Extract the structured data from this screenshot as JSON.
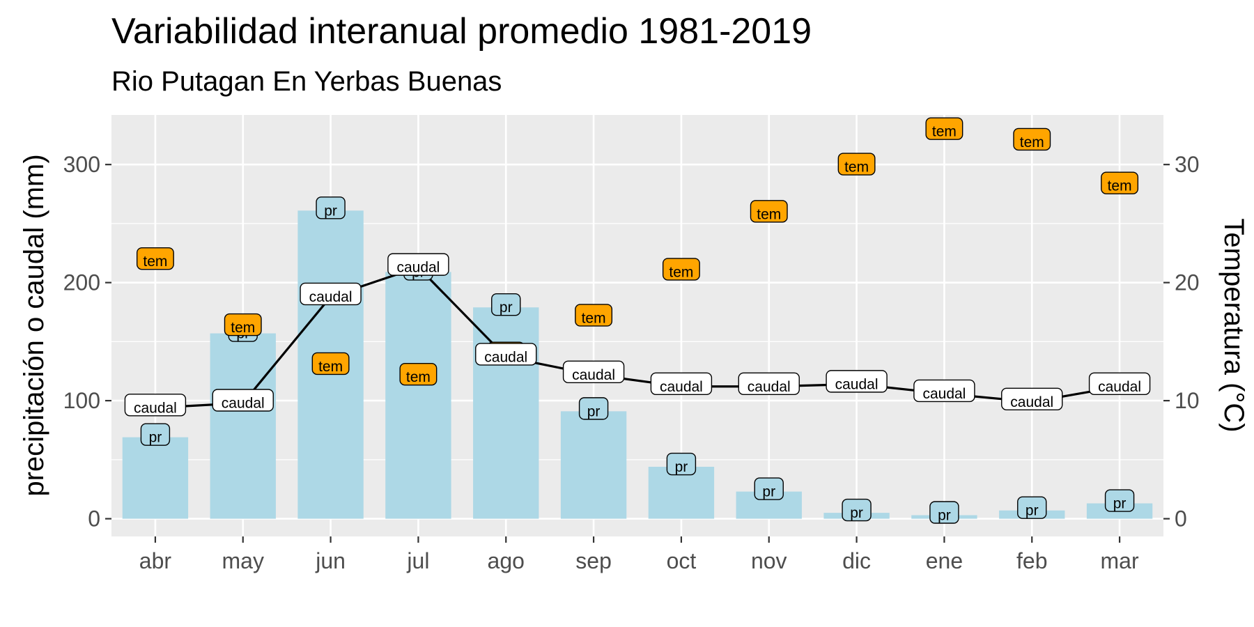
{
  "chart_data": {
    "type": "bar",
    "title": "Variabilidad interanual promedio 1981-2019",
    "subtitle": "Rio Putagan En Yerbas Buenas",
    "categories": [
      "abr",
      "may",
      "jun",
      "jul",
      "ago",
      "sep",
      "oct",
      "nov",
      "dic",
      "ene",
      "feb",
      "mar"
    ],
    "ylabel": "precipitación o caudal (mm)",
    "y2label": "Temperatura (°C)",
    "ylim": [
      -15,
      342
    ],
    "y2lim": [
      -1.5,
      34.2
    ],
    "yticks": [
      0,
      100,
      200,
      300
    ],
    "y2ticks": [
      0,
      10,
      20,
      30
    ],
    "grid": true,
    "series": [
      {
        "name": "pr",
        "kind": "bar",
        "axis": "left",
        "color": "#add8e6",
        "values": [
          69,
          157,
          261,
          209,
          179,
          91,
          44,
          23,
          5,
          3,
          7,
          13
        ]
      },
      {
        "name": "caudal",
        "kind": "line",
        "axis": "left",
        "color": "#000000",
        "values": [
          94,
          98,
          188,
          213,
          137,
          122,
          112,
          112,
          114,
          106,
          99,
          112
        ]
      },
      {
        "name": "tem",
        "kind": "point",
        "axis": "right",
        "color": "#ffa500",
        "values": [
          21.8,
          16.2,
          12.9,
          12.0,
          13.8,
          17.0,
          20.9,
          25.8,
          29.8,
          32.8,
          31.9,
          28.2
        ]
      }
    ]
  }
}
